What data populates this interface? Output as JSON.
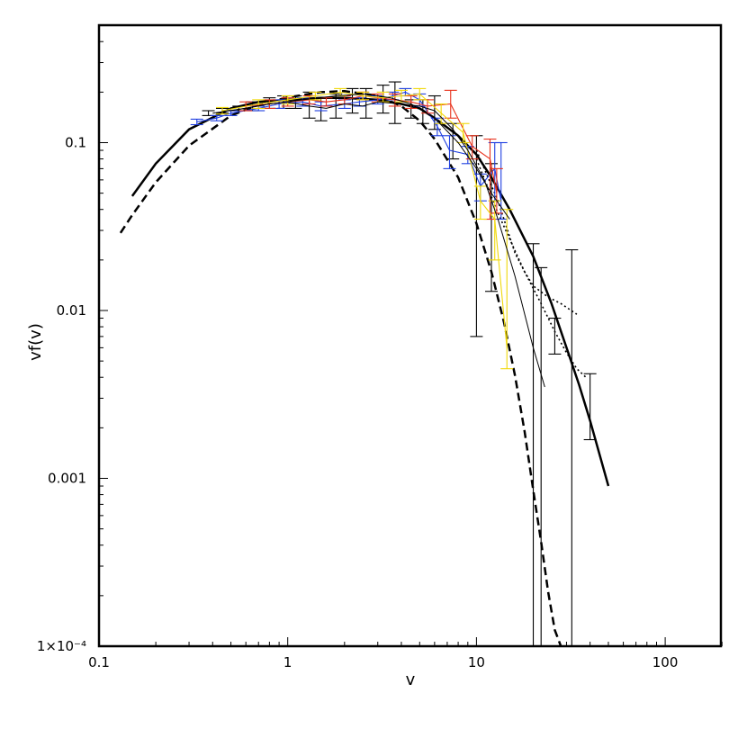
{
  "chart_data": {
    "type": "line",
    "xlabel": "v",
    "ylabel": "vf(v)",
    "x_scale": "log",
    "y_scale": "log",
    "xlim": [
      0.1,
      200
    ],
    "ylim": [
      0.0001,
      0.6
    ],
    "x_ticks": [
      {
        "value": 0.1,
        "label": "0.1"
      },
      {
        "value": 1,
        "label": "1"
      },
      {
        "value": 10,
        "label": "10"
      },
      {
        "value": 100,
        "label": "100"
      }
    ],
    "y_ticks": [
      {
        "value": 0.0001,
        "label": "1×10⁻⁴"
      },
      {
        "value": 0.001,
        "label": "0.001"
      },
      {
        "value": 0.01,
        "label": "0.01"
      },
      {
        "value": 0.1,
        "label": "0.1"
      }
    ],
    "series": [
      {
        "style": "solid-thick",
        "color": "#000000",
        "x": [
          0.15,
          0.2,
          0.3,
          0.5,
          0.7,
          1,
          1.5,
          2,
          3,
          4,
          5,
          6,
          8,
          10,
          12,
          15,
          20,
          25,
          30,
          35,
          40,
          50
        ],
        "y": [
          0.048,
          0.075,
          0.12,
          0.16,
          0.175,
          0.18,
          0.185,
          0.185,
          0.18,
          0.17,
          0.16,
          0.14,
          0.11,
          0.085,
          0.062,
          0.04,
          0.021,
          0.011,
          0.006,
          0.0036,
          0.0022,
          0.0009
        ]
      },
      {
        "style": "dashed-thick",
        "color": "#000000",
        "x": [
          0.13,
          0.15,
          0.2,
          0.3,
          0.5,
          0.7,
          1,
          1.5,
          2,
          3,
          4,
          5,
          6,
          8,
          10,
          12,
          14,
          16,
          18,
          20,
          22,
          24,
          26,
          28
        ],
        "y": [
          0.029,
          0.037,
          0.058,
          0.096,
          0.145,
          0.168,
          0.186,
          0.2,
          0.203,
          0.19,
          0.165,
          0.135,
          0.105,
          0.062,
          0.033,
          0.017,
          0.0085,
          0.0041,
          0.0019,
          0.00085,
          0.00042,
          0.00021,
          0.000125,
          0.0001
        ]
      },
      {
        "style": "dotted",
        "color": "#000000",
        "x": [
          10,
          13,
          16,
          18,
          20,
          24,
          28,
          34
        ],
        "y": [
          0.09,
          0.045,
          0.022,
          0.017,
          0.014,
          0.012,
          0.011,
          0.0095
        ]
      },
      {
        "style": "dotted",
        "color": "#000000",
        "x": [
          10,
          13,
          18,
          22,
          26,
          30,
          34,
          38
        ],
        "y": [
          0.08,
          0.038,
          0.017,
          0.011,
          0.0075,
          0.0056,
          0.0045,
          0.004
        ]
      },
      {
        "style": "errorbars",
        "color": "#000000",
        "x": [
          0.38,
          0.45,
          0.55,
          0.65,
          0.8,
          0.95,
          1.1,
          1.3,
          1.5,
          1.8,
          2.2,
          2.6,
          3.2,
          3.7,
          4.5,
          5.2,
          6,
          7.5,
          10,
          12,
          20,
          22,
          26,
          32,
          40
        ],
        "y": [
          0.15,
          0.155,
          0.16,
          0.165,
          0.17,
          0.175,
          0.175,
          0.17,
          0.16,
          0.165,
          0.18,
          0.175,
          0.18,
          0.17,
          0.16,
          0.155,
          0.15,
          0.1,
          0.06,
          0.03,
          0.013,
          0.006,
          0.0075,
          0.004,
          0.0028
        ],
        "y_low": [
          0.145,
          0.15,
          0.155,
          0.155,
          0.16,
          0.16,
          0.16,
          0.14,
          0.135,
          0.14,
          0.15,
          0.14,
          0.15,
          0.13,
          0.14,
          0.13,
          0.12,
          0.08,
          0.007,
          0.013,
          0.0001,
          0.0001,
          0.0055,
          0.0001,
          0.0017
        ],
        "y_high": [
          0.155,
          0.16,
          0.165,
          0.175,
          0.185,
          0.19,
          0.19,
          0.2,
          0.185,
          0.195,
          0.21,
          0.21,
          0.22,
          0.23,
          0.18,
          0.18,
          0.19,
          0.13,
          0.11,
          0.075,
          0.025,
          0.018,
          0.009,
          0.023,
          0.0042
        ]
      },
      {
        "style": "errorbars-line",
        "color": "#1f3fe0",
        "x": [
          0.33,
          0.42,
          0.5,
          0.7,
          0.9,
          1.2,
          1.5,
          2.0,
          2.4,
          3.0,
          3.6,
          4.2,
          5.0,
          6.2,
          7.2,
          9.0,
          10.5,
          12.5,
          13.5
        ],
        "y": [
          0.133,
          0.14,
          0.15,
          0.16,
          0.17,
          0.175,
          0.165,
          0.17,
          0.175,
          0.18,
          0.19,
          0.2,
          0.18,
          0.125,
          0.09,
          0.085,
          0.055,
          0.07,
          0.045
        ],
        "y_low": [
          0.128,
          0.135,
          0.145,
          0.155,
          0.16,
          0.165,
          0.155,
          0.16,
          0.165,
          0.17,
          0.18,
          0.19,
          0.165,
          0.11,
          0.07,
          0.075,
          0.045,
          0.045,
          0.035
        ],
        "y_high": [
          0.138,
          0.145,
          0.155,
          0.165,
          0.18,
          0.185,
          0.175,
          0.18,
          0.185,
          0.19,
          0.2,
          0.21,
          0.195,
          0.14,
          0.11,
          0.095,
          0.065,
          0.1,
          0.1
        ]
      },
      {
        "style": "errorbars-line",
        "color": "#e8321c",
        "x": [
          0.6,
          0.8,
          1.0,
          1.3,
          1.6,
          2.0,
          2.5,
          3.0,
          3.7,
          4.5,
          5.5,
          7.3,
          9.5,
          11.8,
          12.8
        ],
        "y": [
          0.165,
          0.17,
          0.175,
          0.18,
          0.175,
          0.18,
          0.19,
          0.185,
          0.18,
          0.175,
          0.165,
          0.17,
          0.095,
          0.08,
          0.05
        ],
        "y_low": [
          0.155,
          0.16,
          0.165,
          0.17,
          0.165,
          0.17,
          0.18,
          0.175,
          0.165,
          0.16,
          0.15,
          0.14,
          0.08,
          0.035,
          0.038
        ],
        "y_high": [
          0.175,
          0.18,
          0.185,
          0.19,
          0.185,
          0.19,
          0.2,
          0.195,
          0.195,
          0.19,
          0.18,
          0.205,
          0.11,
          0.105,
          0.07
        ]
      },
      {
        "style": "errorbars-line",
        "color": "#f0d80a",
        "x": [
          0.45,
          0.7,
          1.0,
          1.4,
          1.9,
          2.5,
          3.2,
          4.0,
          5.0,
          6.5,
          8.5,
          10.5,
          12.5,
          14.5
        ],
        "y": [
          0.155,
          0.17,
          0.18,
          0.19,
          0.2,
          0.19,
          0.185,
          0.19,
          0.195,
          0.15,
          0.115,
          0.045,
          0.035,
          0.006
        ],
        "y_low": [
          0.148,
          0.16,
          0.17,
          0.18,
          0.19,
          0.18,
          0.175,
          0.175,
          0.18,
          0.13,
          0.1,
          0.035,
          0.02,
          0.0045
        ],
        "y_high": [
          0.162,
          0.18,
          0.19,
          0.2,
          0.21,
          0.2,
          0.2,
          0.205,
          0.21,
          0.17,
          0.13,
          0.055,
          0.045,
          0.04
        ]
      },
      {
        "style": "solid-thin",
        "color": "#000000",
        "x": [
          0.4,
          0.6,
          0.8,
          1.0,
          1.3,
          1.6,
          2.0,
          2.5,
          3.0,
          4.0,
          5.0,
          6.0,
          7.5,
          9.0,
          11,
          13,
          16,
          20,
          23
        ],
        "y": [
          0.15,
          0.16,
          0.17,
          0.175,
          0.165,
          0.16,
          0.17,
          0.165,
          0.175,
          0.17,
          0.165,
          0.155,
          0.12,
          0.09,
          0.06,
          0.035,
          0.016,
          0.006,
          0.0035
        ]
      },
      {
        "style": "solid-thin",
        "color": "#000000",
        "x": [
          0.5,
          0.8,
          1.2,
          1.8,
          2.6,
          3.5,
          4.5,
          6.0,
          8.0,
          10,
          12,
          15
        ],
        "y": [
          0.155,
          0.17,
          0.18,
          0.19,
          0.195,
          0.185,
          0.17,
          0.14,
          0.1,
          0.07,
          0.05,
          0.035
        ]
      }
    ]
  }
}
